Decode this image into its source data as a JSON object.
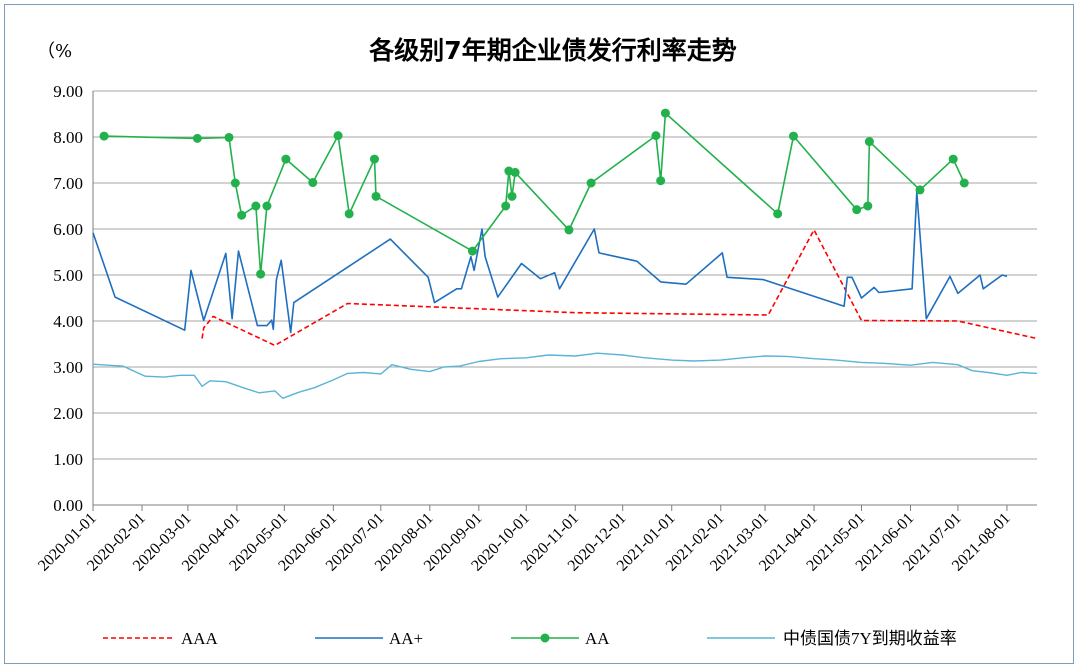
{
  "chart_data": {
    "type": "line",
    "title": "各级别7年期企业债发行利率走势",
    "y_unit": "（%",
    "ylim": [
      0,
      9
    ],
    "yticks": [
      "0.00",
      "1.00",
      "2.00",
      "3.00",
      "4.00",
      "5.00",
      "6.00",
      "7.00",
      "8.00",
      "9.00"
    ],
    "xlim": [
      "2020-01-01",
      "2021-08-20"
    ],
    "xticks": [
      "2020-01-01",
      "2020-02-01",
      "2020-03-01",
      "2020-04-01",
      "2020-05-01",
      "2020-06-01",
      "2020-07-01",
      "2020-08-01",
      "2020-09-01",
      "2020-10-01",
      "2020-11-01",
      "2020-12-01",
      "2021-01-01",
      "2021-02-01",
      "2021-03-01",
      "2021-04-01",
      "2021-05-01",
      "2021-06-01",
      "2021-07-01",
      "2021-08-01"
    ],
    "grid": "horizontal",
    "legend": "bottom",
    "colors": {
      "AAA": "#ff0000",
      "AA+": "#1f6fbf",
      "AA": "#22b14c",
      "CGB": "#5ab4d6",
      "grid": "#a6a6a6",
      "axis": "#7f7f7f"
    },
    "series": [
      {
        "key": "AAA",
        "name": "AAA",
        "style": "dashed",
        "points": [
          [
            "2020-03-10",
            3.62
          ],
          [
            "2020-03-11",
            3.85
          ],
          [
            "2020-03-17",
            4.1
          ],
          [
            "2020-04-25",
            3.47
          ],
          [
            "2020-06-10",
            4.38
          ],
          [
            "2020-11-01",
            4.18
          ],
          [
            "2021-03-03",
            4.13
          ],
          [
            "2021-04-01",
            5.98
          ],
          [
            "2021-05-01",
            4.01
          ],
          [
            "2021-07-01",
            4.0
          ],
          [
            "2021-08-20",
            3.62
          ]
        ]
      },
      {
        "key": "AAplus",
        "name": "AA+",
        "style": "solid",
        "points": [
          [
            "2020-01-01",
            5.92
          ],
          [
            "2020-01-15",
            4.52
          ],
          [
            "2020-02-28",
            3.8
          ],
          [
            "2020-03-03",
            5.1
          ],
          [
            "2020-03-11",
            4.01
          ],
          [
            "2020-03-25",
            5.47
          ],
          [
            "2020-03-29",
            4.05
          ],
          [
            "2020-04-02",
            5.52
          ],
          [
            "2020-04-14",
            3.9
          ],
          [
            "2020-04-20",
            3.9
          ],
          [
            "2020-04-23",
            4.02
          ],
          [
            "2020-04-24",
            3.82
          ],
          [
            "2020-04-26",
            4.9
          ],
          [
            "2020-04-29",
            5.32
          ],
          [
            "2020-05-05",
            3.75
          ],
          [
            "2020-05-07",
            4.4
          ],
          [
            "2020-07-07",
            5.78
          ],
          [
            "2020-07-31",
            4.95
          ],
          [
            "2020-08-04",
            4.4
          ],
          [
            "2020-08-18",
            4.7
          ],
          [
            "2020-08-21",
            4.7
          ],
          [
            "2020-08-27",
            5.4
          ],
          [
            "2020-08-29",
            5.1
          ],
          [
            "2020-09-03",
            6.0
          ],
          [
            "2020-09-05",
            5.4
          ],
          [
            "2020-09-13",
            4.52
          ],
          [
            "2020-09-28",
            5.25
          ],
          [
            "2020-10-10",
            4.92
          ],
          [
            "2020-10-19",
            5.05
          ],
          [
            "2020-10-22",
            4.7
          ],
          [
            "2020-11-13",
            6.0
          ],
          [
            "2020-11-16",
            5.48
          ],
          [
            "2020-12-10",
            5.3
          ],
          [
            "2020-12-25",
            4.85
          ],
          [
            "2021-01-10",
            4.8
          ],
          [
            "2021-02-02",
            5.48
          ],
          [
            "2021-02-05",
            4.95
          ],
          [
            "2021-02-28",
            4.9
          ],
          [
            "2021-04-20",
            4.32
          ],
          [
            "2021-04-22",
            4.95
          ],
          [
            "2021-04-25",
            4.95
          ],
          [
            "2021-05-01",
            4.5
          ],
          [
            "2021-05-09",
            4.73
          ],
          [
            "2021-05-12",
            4.62
          ],
          [
            "2021-06-02",
            4.7
          ],
          [
            "2021-06-05",
            6.8
          ],
          [
            "2021-06-11",
            4.05
          ],
          [
            "2021-06-26",
            4.97
          ],
          [
            "2021-07-01",
            4.6
          ],
          [
            "2021-07-15",
            5.0
          ],
          [
            "2021-07-17",
            4.7
          ],
          [
            "2021-07-29",
            5.0
          ],
          [
            "2021-08-01",
            4.97
          ]
        ]
      },
      {
        "key": "AA",
        "name": "AA",
        "style": "solid-markers",
        "points": [
          [
            "2020-01-08",
            8.02
          ],
          [
            "2020-03-07",
            7.97
          ],
          [
            "2020-03-27",
            7.99
          ],
          [
            "2020-03-31",
            7.0
          ],
          [
            "2020-04-04",
            6.3
          ],
          [
            "2020-04-13",
            6.5
          ],
          [
            "2020-04-16",
            5.02
          ],
          [
            "2020-04-20",
            6.5
          ],
          [
            "2020-05-02",
            7.52
          ],
          [
            "2020-05-19",
            7.01
          ],
          [
            "2020-06-04",
            8.03
          ],
          [
            "2020-06-11",
            6.33
          ],
          [
            "2020-06-27",
            7.52
          ],
          [
            "2020-06-28",
            6.71
          ],
          [
            "2020-08-28",
            5.52
          ],
          [
            "2020-09-18",
            6.5
          ],
          [
            "2020-09-20",
            7.26
          ],
          [
            "2020-09-22",
            6.71
          ],
          [
            "2020-09-24",
            7.23
          ],
          [
            "2020-10-28",
            5.98
          ],
          [
            "2020-11-11",
            7.0
          ],
          [
            "2020-12-22",
            8.03
          ],
          [
            "2020-12-25",
            7.05
          ],
          [
            "2020-12-28",
            8.52
          ],
          [
            "2021-03-09",
            6.33
          ],
          [
            "2021-03-19",
            8.02
          ],
          [
            "2021-04-28",
            6.42
          ],
          [
            "2021-05-05",
            6.5
          ],
          [
            "2021-05-06",
            7.9
          ],
          [
            "2021-06-07",
            6.85
          ],
          [
            "2021-06-28",
            7.52
          ],
          [
            "2021-07-05",
            7.0
          ]
        ]
      },
      {
        "key": "CGB",
        "name": "中债国债7Y到期收益率",
        "style": "solid-thin",
        "points": [
          [
            "2020-01-01",
            3.06
          ],
          [
            "2020-01-10",
            3.04
          ],
          [
            "2020-01-20",
            3.02
          ],
          [
            "2020-02-03",
            2.8
          ],
          [
            "2020-02-15",
            2.78
          ],
          [
            "2020-02-25",
            2.82
          ],
          [
            "2020-03-05",
            2.82
          ],
          [
            "2020-03-10",
            2.58
          ],
          [
            "2020-03-15",
            2.7
          ],
          [
            "2020-03-25",
            2.68
          ],
          [
            "2020-04-05",
            2.55
          ],
          [
            "2020-04-15",
            2.44
          ],
          [
            "2020-04-25",
            2.48
          ],
          [
            "2020-04-30",
            2.32
          ],
          [
            "2020-05-10",
            2.45
          ],
          [
            "2020-05-20",
            2.55
          ],
          [
            "2020-06-01",
            2.72
          ],
          [
            "2020-06-10",
            2.86
          ],
          [
            "2020-06-20",
            2.88
          ],
          [
            "2020-07-01",
            2.85
          ],
          [
            "2020-07-08",
            3.05
          ],
          [
            "2020-07-20",
            2.95
          ],
          [
            "2020-08-01",
            2.9
          ],
          [
            "2020-08-10",
            3.0
          ],
          [
            "2020-08-20",
            3.02
          ],
          [
            "2020-09-01",
            3.12
          ],
          [
            "2020-09-15",
            3.18
          ],
          [
            "2020-10-01",
            3.2
          ],
          [
            "2020-10-15",
            3.26
          ],
          [
            "2020-11-01",
            3.24
          ],
          [
            "2020-11-15",
            3.3
          ],
          [
            "2020-12-01",
            3.26
          ],
          [
            "2020-12-15",
            3.2
          ],
          [
            "2021-01-01",
            3.15
          ],
          [
            "2021-01-15",
            3.13
          ],
          [
            "2021-02-01",
            3.15
          ],
          [
            "2021-02-15",
            3.2
          ],
          [
            "2021-03-01",
            3.24
          ],
          [
            "2021-03-15",
            3.23
          ],
          [
            "2021-04-01",
            3.18
          ],
          [
            "2021-04-15",
            3.15
          ],
          [
            "2021-05-01",
            3.1
          ],
          [
            "2021-05-15",
            3.08
          ],
          [
            "2021-06-01",
            3.04
          ],
          [
            "2021-06-15",
            3.1
          ],
          [
            "2021-07-01",
            3.05
          ],
          [
            "2021-07-10",
            2.92
          ],
          [
            "2021-07-20",
            2.88
          ],
          [
            "2021-08-01",
            2.82
          ],
          [
            "2021-08-10",
            2.88
          ],
          [
            "2021-08-20",
            2.86
          ]
        ]
      }
    ]
  }
}
